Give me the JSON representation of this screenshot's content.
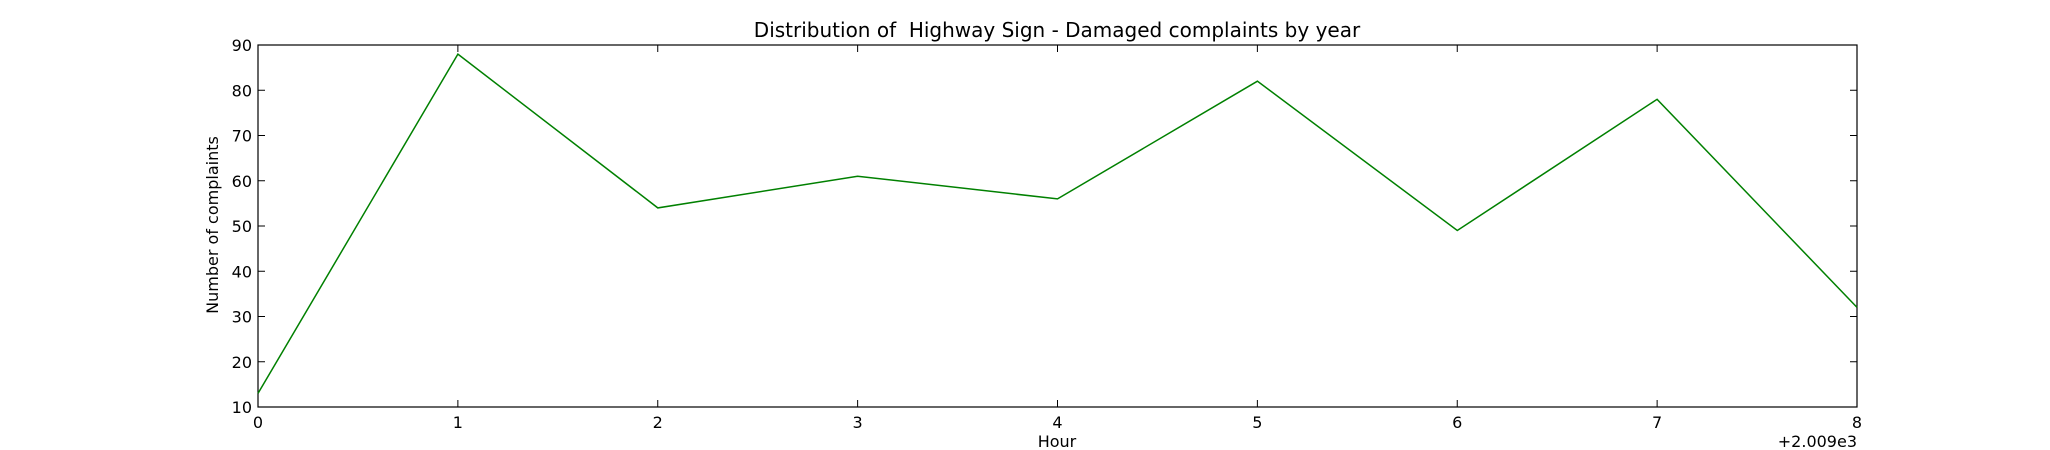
{
  "chart_data": {
    "type": "line",
    "title": "Distribution of  Highway Sign - Damaged complaints by year",
    "xlabel": "Hour",
    "ylabel": "Number of complaints",
    "x_offset_label": "+2.009e3",
    "x": [
      0,
      1,
      2,
      3,
      4,
      5,
      6,
      7,
      8
    ],
    "xlim": [
      0,
      8
    ],
    "ylim": [
      10,
      90
    ],
    "xticks": [
      0,
      1,
      2,
      3,
      4,
      5,
      6,
      7,
      8
    ],
    "yticks": [
      10,
      20,
      30,
      40,
      50,
      60,
      70,
      80,
      90
    ],
    "grid": false,
    "series": [
      {
        "values": [
          13,
          88,
          54,
          61,
          56,
          82,
          49,
          78,
          32
        ],
        "color": "#008000"
      }
    ]
  }
}
